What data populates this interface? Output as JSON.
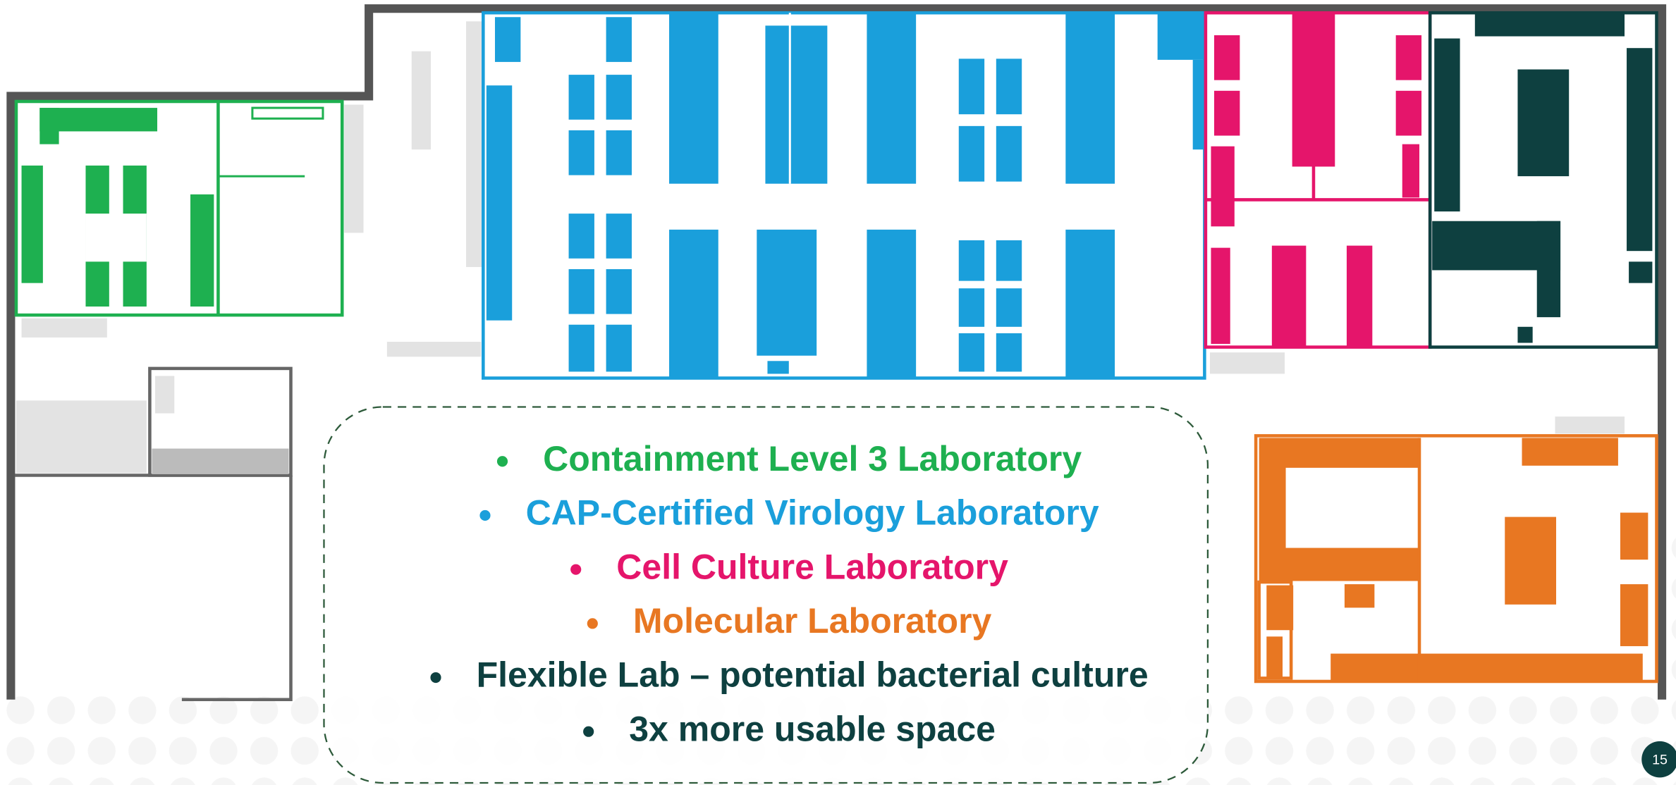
{
  "items": [
    {
      "text": "Containment Level 3 Laboratory",
      "color": "#1eb050"
    },
    {
      "text": "CAP-Certified Virology Laboratory",
      "color": "#1a9fdb"
    },
    {
      "text": "Cell Culture Laboratory",
      "color": "#e5156b"
    },
    {
      "text": "Molecular Laboratory",
      "color": "#e87722"
    },
    {
      "text": "Flexible Lab – potential bacterial culture",
      "color": "#0e4040"
    },
    {
      "text": "3x more usable space",
      "color": "#0e4040"
    }
  ],
  "page_number": "15"
}
